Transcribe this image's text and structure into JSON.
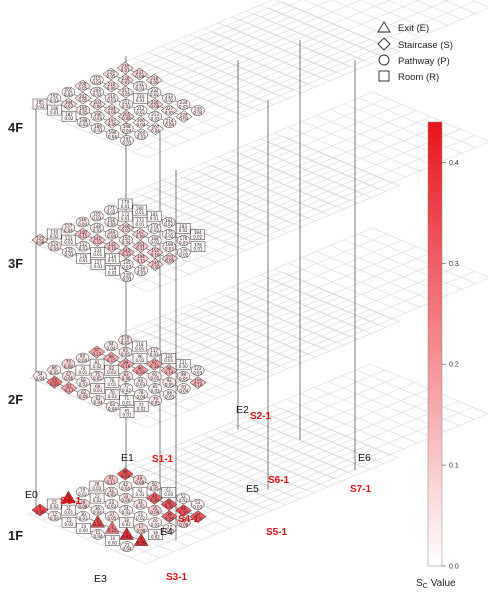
{
  "legend": {
    "items": [
      {
        "shape": "triangle",
        "label": "Exit (E)"
      },
      {
        "shape": "diamond",
        "label": "Staircase (S)"
      },
      {
        "shape": "circle",
        "label": "Pathway (P)"
      },
      {
        "shape": "square",
        "label": "Room (R)"
      }
    ]
  },
  "colorbar": {
    "title_main": "S",
    "title_sub": "C",
    "title_rest": "Value",
    "ticks": [
      "0.4",
      "0.3",
      "0.2",
      "0.1",
      "0.0"
    ],
    "tick_values": [
      0.4,
      0.3,
      0.2,
      0.1,
      0.0
    ],
    "max": 0.44,
    "color_low": "#ffffff",
    "color_high": "#e8141c"
  },
  "floors": {
    "f1": "1F",
    "f2": "2F",
    "f3": "3F",
    "f4": "4F"
  },
  "exits": {
    "e0": "E0",
    "e1": "E1",
    "e2": "E2",
    "e3": "E3",
    "e4": "E4",
    "e5": "E5",
    "e6": "E6"
  },
  "staircases": {
    "s0": "S0-1",
    "s1": "S1-1",
    "s2": "S2-1",
    "s3": "S3-1",
    "s4": "S4-1",
    "s5": "S5-1",
    "s6": "S6-1",
    "s7": "S7-1"
  },
  "nodes": [
    {
      "type": "S",
      "id": "5",
      "v": "0.35"
    },
    {
      "type": "P",
      "id": "12",
      "v": "0.04"
    },
    {
      "type": "R",
      "id": "13",
      "v": "0.02"
    },
    {
      "type": "R",
      "id": "14",
      "v": "0.00"
    },
    {
      "type": "P",
      "id": "15",
      "v": "0.04"
    },
    {
      "type": "R",
      "id": "16",
      "v": "0.00"
    },
    {
      "type": "P",
      "id": "21",
      "v": "0.04"
    },
    {
      "type": "R",
      "id": "23",
      "v": "0.02"
    },
    {
      "type": "R",
      "id": "31",
      "v": "0.01"
    },
    {
      "type": "P",
      "id": "30",
      "v": "0.03"
    },
    {
      "type": "E",
      "id": "1",
      "v": "0.35"
    },
    {
      "type": "E",
      "id": "3",
      "v": "0.25"
    },
    {
      "type": "E",
      "id": "2",
      "v": "0.40"
    },
    {
      "type": "E",
      "id": "4",
      "v": "0.39"
    },
    {
      "type": "E",
      "id": "6",
      "v": "0.41"
    },
    {
      "type": "P",
      "id": "29",
      "v": "0.08"
    },
    {
      "type": "P",
      "id": "36",
      "v": "0.04"
    },
    {
      "type": "P",
      "id": "37",
      "v": "0.05"
    },
    {
      "type": "R",
      "id": "38",
      "v": "0.02"
    },
    {
      "type": "P",
      "id": "17",
      "v": "0.08"
    },
    {
      "type": "R",
      "id": "18",
      "v": "0.02"
    },
    {
      "type": "P",
      "id": "19",
      "v": "0.02"
    },
    {
      "type": "R",
      "id": "22",
      "v": "0.02"
    },
    {
      "type": "P",
      "id": "20",
      "v": "0.03"
    },
    {
      "type": "P",
      "id": "24",
      "v": "0.03"
    },
    {
      "type": "P",
      "id": "25",
      "v": "0.02"
    },
    {
      "type": "P",
      "id": "26",
      "v": "0.03"
    },
    {
      "type": "P",
      "id": "27",
      "v": "0.03"
    },
    {
      "type": "R",
      "id": "28",
      "v": "0.03"
    },
    {
      "type": "P",
      "id": "32",
      "v": "0.05"
    },
    {
      "type": "P",
      "id": "33",
      "v": "0.06"
    },
    {
      "type": "P",
      "id": "34",
      "v": "0.05"
    },
    {
      "type": "P",
      "id": "35",
      "v": "0.09"
    },
    {
      "type": "S",
      "id": "39",
      "v": "0.29"
    },
    {
      "type": "P",
      "id": "40",
      "v": "0.08"
    },
    {
      "type": "P",
      "id": "41",
      "v": "0.11"
    },
    {
      "type": "P",
      "id": "42",
      "v": "0.04"
    },
    {
      "type": "R",
      "id": "43",
      "v": "0.01"
    },
    {
      "type": "S",
      "id": "44",
      "v": "0.30"
    },
    {
      "type": "S",
      "id": "45",
      "v": "0.32"
    },
    {
      "type": "S",
      "id": "46",
      "v": "0.33"
    },
    {
      "type": "S",
      "id": "47",
      "v": "0.30"
    },
    {
      "type": "S",
      "id": "48",
      "v": "0.33"
    },
    {
      "type": "P",
      "id": "49",
      "v": "0.08"
    },
    {
      "type": "P",
      "id": "50",
      "v": "0.05"
    },
    {
      "type": "R",
      "id": "51",
      "v": "0.00"
    },
    {
      "type": "P",
      "id": "52",
      "v": "0.02"
    },
    {
      "type": "P",
      "id": "53",
      "v": "0.03"
    },
    {
      "type": "P",
      "id": "54",
      "v": "0.04"
    },
    {
      "type": "S",
      "id": "55",
      "v": "0.26"
    },
    {
      "type": "S",
      "id": "61",
      "v": "0.17"
    },
    {
      "type": "P",
      "id": "62",
      "v": "0.06"
    },
    {
      "type": "P",
      "id": "63",
      "v": "0.04"
    },
    {
      "type": "P",
      "id": "64",
      "v": "0.04"
    },
    {
      "type": "R",
      "id": "65",
      "v": "0.01"
    },
    {
      "type": "P",
      "id": "66",
      "v": "0.05"
    },
    {
      "type": "P",
      "id": "67",
      "v": "0.06"
    },
    {
      "type": "P",
      "id": "68",
      "v": "0.03"
    },
    {
      "type": "R",
      "id": "69",
      "v": "0.03"
    },
    {
      "type": "R",
      "id": "70",
      "v": "0.03"
    },
    {
      "type": "R",
      "id": "71",
      "v": "0.01"
    },
    {
      "type": "R",
      "id": "72",
      "v": "0.02"
    },
    {
      "type": "P",
      "id": "73",
      "v": "0.08"
    },
    {
      "type": "R",
      "id": "74",
      "v": "0.01"
    },
    {
      "type": "P",
      "id": "75",
      "v": "0.05"
    },
    {
      "type": "R",
      "id": "76",
      "v": "0.01"
    },
    {
      "type": "P",
      "id": "77",
      "v": "0.02"
    },
    {
      "type": "P",
      "id": "78",
      "v": "0.04"
    },
    {
      "type": "P",
      "id": "79",
      "v": "0.05"
    },
    {
      "type": "P",
      "id": "80",
      "v": "0.04"
    },
    {
      "type": "R",
      "id": "81",
      "v": "0.02"
    },
    {
      "type": "R",
      "id": "82",
      "v": "0.03"
    },
    {
      "type": "P",
      "id": "83",
      "v": "0.06"
    },
    {
      "type": "P",
      "id": "84",
      "v": "0.03"
    },
    {
      "type": "P",
      "id": "85",
      "v": "0.03"
    },
    {
      "type": "P",
      "id": "86",
      "v": "0.03"
    },
    {
      "type": "S",
      "id": "87",
      "v": "0.17"
    },
    {
      "type": "S",
      "id": "88",
      "v": "0.15"
    },
    {
      "type": "S",
      "id": "89",
      "v": "0.16"
    },
    {
      "type": "S",
      "id": "90",
      "v": "0.19"
    },
    {
      "type": "P",
      "id": "91",
      "v": "0.05"
    },
    {
      "type": "P",
      "id": "92",
      "v": "0.05"
    },
    {
      "type": "P",
      "id": "93",
      "v": "0.04"
    },
    {
      "type": "P",
      "id": "94",
      "v": "0.04"
    },
    {
      "type": "P",
      "id": "95",
      "v": "0.05"
    },
    {
      "type": "R",
      "id": "96",
      "v": "0.02"
    },
    {
      "type": "S",
      "id": "97",
      "v": "0.18"
    },
    {
      "type": "S",
      "id": "98",
      "v": "0.14"
    },
    {
      "type": "P",
      "id": "99",
      "v": "0.05"
    },
    {
      "type": "S",
      "id": "115",
      "v": "0.14"
    },
    {
      "type": "P",
      "id": "116",
      "v": "0.05"
    },
    {
      "type": "R",
      "id": "118",
      "v": "0.01"
    },
    {
      "type": "P",
      "id": "117",
      "v": "0.03"
    },
    {
      "type": "R",
      "id": "120",
      "v": "0.01"
    },
    {
      "type": "R",
      "id": "121",
      "v": "0.00"
    },
    {
      "type": "P",
      "id": "122",
      "v": "0.03"
    },
    {
      "type": "S",
      "id": "123",
      "v": "0.08"
    },
    {
      "type": "P",
      "id": "124",
      "v": "0.04"
    },
    {
      "type": "P",
      "id": "125",
      "v": "0.03"
    },
    {
      "type": "R",
      "id": "126",
      "v": "0.01"
    },
    {
      "type": "R",
      "id": "127",
      "v": "0.01"
    },
    {
      "type": "R",
      "id": "128",
      "v": "0.01"
    },
    {
      "type": "P",
      "id": "129",
      "v": "0.03"
    },
    {
      "type": "R",
      "id": "130",
      "v": "0.02"
    },
    {
      "type": "R",
      "id": "131",
      "v": "0.02"
    },
    {
      "type": "P",
      "id": "132",
      "v": "0.03"
    },
    {
      "type": "R",
      "id": "133",
      "v": "0.01"
    },
    {
      "type": "R",
      "id": "134",
      "v": "0.01"
    },
    {
      "type": "P",
      "id": "135",
      "v": "0.03"
    },
    {
      "type": "P",
      "id": "136",
      "v": "0.03"
    },
    {
      "type": "P",
      "id": "137",
      "v": "0.04"
    },
    {
      "type": "S",
      "id": "140",
      "v": "0.11"
    },
    {
      "type": "S",
      "id": "141",
      "v": "0.12"
    },
    {
      "type": "S",
      "id": "142",
      "v": "0.10"
    },
    {
      "type": "S",
      "id": "143",
      "v": "0.13"
    },
    {
      "type": "S",
      "id": "144",
      "v": "0.11"
    },
    {
      "type": "S",
      "id": "145",
      "v": "0.10"
    },
    {
      "type": "P",
      "id": "146",
      "v": "0.04"
    },
    {
      "type": "P",
      "id": "148",
      "v": "0.03"
    },
    {
      "type": "P",
      "id": "149",
      "v": "0.04"
    },
    {
      "type": "P",
      "id": "150",
      "v": "0.04"
    },
    {
      "type": "S",
      "id": "151",
      "v": "0.11"
    },
    {
      "type": "S",
      "id": "152",
      "v": "0.10"
    },
    {
      "type": "S",
      "id": "153",
      "v": "0.09"
    },
    {
      "type": "P",
      "id": "155",
      "v": "0.03"
    },
    {
      "type": "P",
      "id": "156",
      "v": "0.04"
    },
    {
      "type": "S",
      "id": "166",
      "v": "0.07"
    },
    {
      "type": "S",
      "id": "167",
      "v": "0.08"
    },
    {
      "type": "P",
      "id": "168",
      "v": "0.02"
    },
    {
      "type": "P",
      "id": "169",
      "v": "0.03"
    },
    {
      "type": "P",
      "id": "170",
      "v": "0.02"
    },
    {
      "type": "P",
      "id": "171",
      "v": "0.02"
    },
    {
      "type": "R",
      "id": "172",
      "v": "0.01"
    },
    {
      "type": "R",
      "id": "173",
      "v": "0.01"
    },
    {
      "type": "P",
      "id": "174",
      "v": "0.02"
    },
    {
      "type": "P",
      "id": "175",
      "v": "0.02"
    },
    {
      "type": "P",
      "id": "176",
      "v": "0.03"
    },
    {
      "type": "R",
      "id": "178",
      "v": "0.01"
    },
    {
      "type": "R",
      "id": "179",
      "v": "0.01"
    },
    {
      "type": "R",
      "id": "180",
      "v": "0.01"
    },
    {
      "type": "R",
      "id": "181",
      "v": "0.01"
    },
    {
      "type": "P",
      "id": "182",
      "v": "0.02"
    },
    {
      "type": "R",
      "id": "183",
      "v": "0.02"
    },
    {
      "type": "R",
      "id": "184",
      "v": "0.02"
    },
    {
      "type": "R",
      "id": "185",
      "v": "0.02"
    },
    {
      "type": "R",
      "id": "186",
      "v": "0.01"
    },
    {
      "type": "R",
      "id": "187",
      "v": "0.02"
    },
    {
      "type": "P",
      "id": "188",
      "v": "0.03"
    },
    {
      "type": "P",
      "id": "189",
      "v": "0.03"
    },
    {
      "type": "P",
      "id": "190",
      "v": "0.04"
    },
    {
      "type": "P",
      "id": "191",
      "v": "0.03"
    },
    {
      "type": "P",
      "id": "192",
      "v": "0.03"
    },
    {
      "type": "S",
      "id": "194",
      "v": "0.07"
    },
    {
      "type": "P",
      "id": "195",
      "v": "0.05"
    },
    {
      "type": "P",
      "id": "196",
      "v": "0.04"
    },
    {
      "type": "S",
      "id": "197",
      "v": "0.06"
    },
    {
      "type": "P",
      "id": "198",
      "v": "0.04"
    },
    {
      "type": "P",
      "id": "200",
      "v": "0.03"
    },
    {
      "type": "P",
      "id": "201",
      "v": "0.03"
    },
    {
      "type": "S",
      "id": "202",
      "v": "0.05"
    },
    {
      "type": "S",
      "id": "203",
      "v": "0.06"
    },
    {
      "type": "S",
      "id": "204",
      "v": "0.06"
    },
    {
      "type": "S",
      "id": "205",
      "v": "0.08"
    },
    {
      "type": "S",
      "id": "206",
      "v": "0.04"
    },
    {
      "type": "S",
      "id": "207",
      "v": "0.04"
    },
    {
      "type": "S",
      "id": "208",
      "v": "0.05"
    },
    {
      "type": "P",
      "id": "209",
      "v": "0.03"
    },
    {
      "type": "P",
      "id": "210",
      "v": "0.03"
    },
    {
      "type": "P",
      "id": "211",
      "v": "0.03"
    },
    {
      "type": "P",
      "id": "212",
      "v": "0.02"
    },
    {
      "type": "P",
      "id": "213",
      "v": "0.03"
    },
    {
      "type": "P",
      "id": "214",
      "v": "0.04"
    },
    {
      "type": "P",
      "id": "215",
      "v": "0.04"
    },
    {
      "type": "S",
      "id": "216",
      "v": "0.06"
    },
    {
      "type": "S",
      "id": "217",
      "v": "0.05"
    },
    {
      "type": "R",
      "id": "220",
      "v": "0.01"
    },
    {
      "type": "S",
      "id": "226",
      "v": "0.08"
    },
    {
      "type": "S",
      "id": "227",
      "v": "0.05"
    },
    {
      "type": "S",
      "id": "228",
      "v": "0.04"
    },
    {
      "type": "S",
      "id": "229",
      "v": "0.05"
    },
    {
      "type": "S",
      "id": "230",
      "v": "0.07"
    },
    {
      "type": "P",
      "id": "231",
      "v": "0.03"
    },
    {
      "type": "P",
      "id": "232",
      "v": "0.02"
    },
    {
      "type": "P",
      "id": "233",
      "v": "0.02"
    },
    {
      "type": "P",
      "id": "234",
      "v": "0.03"
    },
    {
      "type": "P",
      "id": "235",
      "v": "0.04"
    },
    {
      "type": "S",
      "id": "236",
      "v": "0.07"
    },
    {
      "type": "S",
      "id": "237",
      "v": "0.08"
    },
    {
      "type": "S",
      "id": "238",
      "v": "0.06"
    }
  ]
}
